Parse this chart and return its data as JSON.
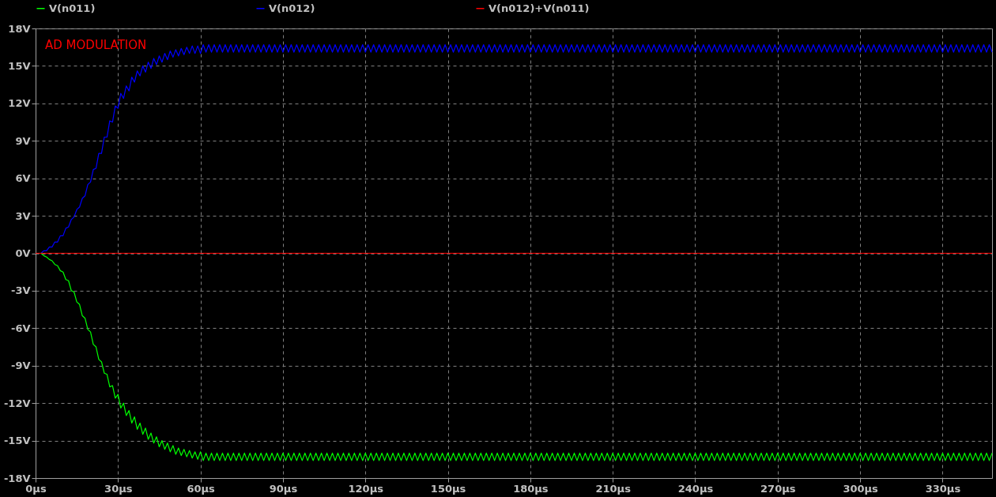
{
  "chart_data": {
    "type": "line",
    "annotations": [
      "AD MODULATION"
    ],
    "x": [
      2,
      3,
      4,
      5,
      6,
      7,
      8,
      9,
      10,
      11,
      12,
      13,
      14,
      15,
      16,
      17,
      18,
      19,
      20,
      21,
      22,
      23,
      24,
      25,
      26,
      27,
      28,
      29,
      30,
      31,
      32,
      33,
      34,
      35,
      36,
      37,
      38,
      39,
      40,
      41,
      42,
      43,
      44,
      45,
      46,
      47,
      48,
      49,
      50,
      51,
      52,
      53,
      54,
      55,
      56,
      57,
      58,
      59,
      60,
      61,
      62,
      63,
      64,
      65,
      66,
      67,
      68,
      69,
      70,
      71,
      72,
      73,
      74,
      75,
      76,
      77,
      78,
      79,
      80,
      81,
      82,
      83,
      84,
      85,
      86,
      87,
      88,
      89,
      90,
      91,
      92,
      93,
      94,
      95,
      96,
      97,
      98,
      99,
      100,
      101,
      102,
      103,
      104,
      105,
      106,
      107,
      108,
      109,
      110,
      111,
      112,
      113,
      114,
      115,
      116,
      117,
      118,
      119,
      120,
      121,
      122,
      123,
      124,
      125,
      126,
      127,
      128,
      129,
      130,
      131,
      132,
      133,
      134,
      135,
      136,
      137,
      138,
      139,
      140,
      141,
      142,
      143,
      144,
      145,
      146,
      147,
      148,
      149,
      150,
      151,
      152,
      153,
      154,
      155,
      156,
      157,
      158,
      159,
      160,
      161,
      162,
      163,
      164,
      165,
      166,
      167,
      168,
      169,
      170,
      171,
      172,
      173,
      174,
      175,
      176,
      177,
      178,
      179,
      180,
      181,
      182,
      183,
      184,
      185,
      186,
      187,
      188,
      189,
      190,
      191,
      192,
      193,
      194,
      195,
      196,
      197,
      198,
      199,
      200,
      201,
      202,
      203,
      204,
      205,
      206,
      207,
      208,
      209,
      210,
      211,
      212,
      213,
      214,
      215,
      216,
      217,
      218,
      219,
      220,
      221,
      222,
      223,
      224,
      225,
      226,
      227,
      228,
      229,
      230,
      231,
      232,
      233,
      234,
      235,
      236,
      237,
      238,
      239,
      240,
      241,
      242,
      243,
      244,
      245,
      246,
      247,
      248,
      249,
      250,
      251,
      252,
      253,
      254,
      255,
      256,
      257,
      258,
      259,
      260,
      261,
      262,
      263,
      264,
      265,
      266,
      267,
      268,
      269,
      270,
      271,
      272,
      273,
      274,
      275,
      276,
      277,
      278,
      279,
      280,
      281,
      282,
      283,
      284,
      285,
      286,
      287,
      288,
      289,
      290,
      291,
      292,
      293,
      294,
      295,
      296,
      297,
      298,
      299,
      300,
      301,
      302,
      303,
      304,
      305,
      306,
      307,
      308,
      309,
      310,
      311,
      312,
      313,
      314,
      315,
      316,
      317,
      318,
      319,
      320,
      321,
      322,
      323,
      324,
      325,
      326,
      327,
      328,
      329,
      330,
      331,
      332,
      333,
      334,
      335,
      336,
      337,
      338,
      339,
      340,
      341,
      342,
      343,
      344,
      345,
      346,
      347,
      348
    ],
    "series": [
      {
        "name": "V(n011)",
        "color": "#00ff00",
        "values": [
          0,
          -0.2,
          -0.3,
          -0.5,
          -0.6,
          -0.9,
          -1.0,
          -1.4,
          -1.5,
          -2.1,
          -2.2,
          -3.0,
          -3.1,
          -3.9,
          -4.1,
          -5.0,
          -5.2,
          -6.1,
          -6.3,
          -7.3,
          -7.5,
          -8.5,
          -8.7,
          -9.6,
          -9.7,
          -10.7,
          -10.6,
          -11.6,
          -11.3,
          -12.4,
          -12.0,
          -13.0,
          -12.6,
          -13.6,
          -13.1,
          -14.1,
          -13.6,
          -14.5,
          -14.0,
          -14.9,
          -14.4,
          -15.2,
          -14.7,
          -15.5,
          -15.0,
          -15.7,
          -15.2,
          -15.9,
          -15.4,
          -16.1,
          -15.6,
          -16.2,
          -15.7,
          -16.3,
          -15.8,
          -16.4,
          -15.9,
          -16.5,
          -15.9,
          -16.6,
          -16.0,
          -16.6,
          -16.0,
          -16.6,
          -16.0,
          -16.6,
          -16.0,
          -16.6,
          -16.0,
          -16.6,
          -16.0,
          -16.6,
          -16.0,
          -16.6,
          -16.0,
          -16.6,
          -16.0,
          -16.6,
          -16.0,
          -16.6,
          -16.0,
          -16.6,
          -16.0,
          -16.6,
          -16.0,
          -16.6,
          -16.0,
          -16.6,
          -16.0,
          -16.6,
          -16.0,
          -16.6,
          -16.0,
          -16.6,
          -16.0,
          -16.6,
          -16.0,
          -16.6,
          -16.0,
          -16.6,
          -16.0,
          -16.6,
          -16.0,
          -16.6,
          -16.0,
          -16.6,
          -16.0,
          -16.6,
          -16.0,
          -16.6,
          -16.0,
          -16.6,
          -16.0,
          -16.6,
          -16.0,
          -16.6,
          -16.0,
          -16.6,
          -16.0,
          -16.6,
          -16.0,
          -16.6,
          -16.0,
          -16.6,
          -16.0,
          -16.6,
          -16.0,
          -16.6,
          -16.0,
          -16.6,
          -16.0,
          -16.6,
          -16.0,
          -16.6,
          -16.0,
          -16.6,
          -16.0,
          -16.6,
          -16.0,
          -16.6,
          -16.0,
          -16.6,
          -16.0,
          -16.6,
          -16.0,
          -16.6,
          -16.0,
          -16.6,
          -16.0,
          -16.6,
          -16.0,
          -16.6,
          -16.0,
          -16.6,
          -16.0,
          -16.6,
          -16.0,
          -16.6,
          -16.0,
          -16.6,
          -16.0,
          -16.6,
          -16.0,
          -16.6,
          -16.0,
          -16.6,
          -16.0,
          -16.6,
          -16.0,
          -16.6,
          -16.0,
          -16.6,
          -16.0,
          -16.6,
          -16.0,
          -16.6,
          -16.0,
          -16.6,
          -16.0,
          -16.6,
          -16.0,
          -16.6,
          -16.0,
          -16.6,
          -16.0,
          -16.6,
          -16.0,
          -16.6,
          -16.0,
          -16.6,
          -16.0,
          -16.6,
          -16.0,
          -16.6,
          -16.0,
          -16.6,
          -16.0,
          -16.6,
          -16.0,
          -16.6,
          -16.0,
          -16.6,
          -16.0,
          -16.6,
          -16.0,
          -16.6,
          -16.0,
          -16.6,
          -16.0,
          -16.6,
          -16.0,
          -16.6,
          -16.0,
          -16.6,
          -16.0,
          -16.6,
          -16.0,
          -16.6,
          -16.0,
          -16.6,
          -16.0,
          -16.6,
          -16.0,
          -16.6,
          -16.0,
          -16.6,
          -16.0,
          -16.6,
          -16.0,
          -16.6,
          -16.0,
          -16.6,
          -16.0,
          -16.6,
          -16.0,
          -16.6,
          -16.0,
          -16.6,
          -16.0,
          -16.6,
          -16.0,
          -16.6,
          -16.0,
          -16.6,
          -16.0,
          -16.6,
          -16.0,
          -16.6,
          -16.0,
          -16.6,
          -16.0,
          -16.6,
          -16.0,
          -16.6,
          -16.0,
          -16.6,
          -16.0,
          -16.6,
          -16.0,
          -16.6,
          -16.0,
          -16.6,
          -16.0,
          -16.6,
          -16.0,
          -16.6,
          -16.0,
          -16.6,
          -16.0,
          -16.6,
          -16.0,
          -16.6,
          -16.0,
          -16.6,
          -16.0,
          -16.6,
          -16.0,
          -16.6,
          -16.0,
          -16.6,
          -16.0,
          -16.6,
          -16.0,
          -16.6,
          -16.0,
          -16.6,
          -16.0,
          -16.6,
          -16.0,
          -16.6,
          -16.0,
          -16.6,
          -16.0,
          -16.6,
          -16.0,
          -16.6,
          -16.0,
          -16.6,
          -16.0,
          -16.6,
          -16.0,
          -16.6,
          -16.0,
          -16.6,
          -16.0,
          -16.6,
          -16.0,
          -16.6,
          -16.0,
          -16.6,
          -16.0,
          -16.6,
          -16.0,
          -16.6,
          -16.0,
          -16.6,
          -16.0,
          -16.6,
          -16.0,
          -16.6,
          -16.0,
          -16.6,
          -16.0,
          -16.6,
          -16.0,
          -16.6,
          -16.0,
          -16.6,
          -16.0,
          -16.6,
          -16.0,
          -16.6,
          -16.0,
          -16.6,
          -16.0,
          -16.6,
          -16.0,
          -16.6,
          -16.0,
          -16.6,
          -16.0,
          -16.6,
          -16.0,
          -16.6,
          -16.0,
          -16.6,
          -16.0
        ]
      },
      {
        "name": "V(n012)",
        "color": "#0000ff",
        "values": [
          0,
          0.2,
          0.2,
          0.5,
          0.5,
          0.9,
          0.9,
          1.4,
          1.4,
          2.0,
          2.1,
          2.7,
          2.9,
          3.5,
          3.7,
          4.4,
          4.6,
          5.5,
          5.7,
          6.7,
          6.8,
          8.0,
          8.0,
          9.3,
          9.3,
          10.6,
          10.5,
          11.8,
          11.6,
          12.8,
          12.4,
          13.4,
          13.0,
          14.1,
          13.7,
          14.6,
          14.2,
          15.0,
          14.5,
          15.3,
          14.8,
          15.6,
          15.1,
          15.8,
          15.3,
          16.0,
          15.5,
          16.2,
          15.7,
          16.3,
          15.8,
          16.4,
          15.9,
          16.5,
          16.0,
          16.6,
          16.0,
          16.6,
          16.0,
          16.7,
          16.1,
          16.7,
          16.1,
          16.7,
          16.1,
          16.7,
          16.1,
          16.7,
          16.1,
          16.7,
          16.1,
          16.7,
          16.1,
          16.7,
          16.1,
          16.7,
          16.1,
          16.7,
          16.1,
          16.7,
          16.1,
          16.7,
          16.1,
          16.7,
          16.1,
          16.7,
          16.1,
          16.7,
          16.1,
          16.7,
          16.1,
          16.7,
          16.1,
          16.7,
          16.1,
          16.7,
          16.1,
          16.7,
          16.1,
          16.7,
          16.1,
          16.7,
          16.1,
          16.7,
          16.1,
          16.7,
          16.1,
          16.7,
          16.1,
          16.7,
          16.1,
          16.7,
          16.1,
          16.7,
          16.1,
          16.7,
          16.1,
          16.7,
          16.1,
          16.7,
          16.1,
          16.7,
          16.1,
          16.7,
          16.1,
          16.7,
          16.1,
          16.7,
          16.1,
          16.7,
          16.1,
          16.7,
          16.1,
          16.7,
          16.1,
          16.7,
          16.1,
          16.7,
          16.1,
          16.7,
          16.1,
          16.7,
          16.1,
          16.7,
          16.1,
          16.7,
          16.1,
          16.7,
          16.1,
          16.7,
          16.1,
          16.7,
          16.1,
          16.7,
          16.1,
          16.7,
          16.1,
          16.7,
          16.1,
          16.7,
          16.1,
          16.7,
          16.1,
          16.7,
          16.1,
          16.7,
          16.1,
          16.7,
          16.1,
          16.7,
          16.1,
          16.7,
          16.1,
          16.7,
          16.1,
          16.7,
          16.1,
          16.7,
          16.1,
          16.7,
          16.1,
          16.7,
          16.1,
          16.7,
          16.1,
          16.7,
          16.1,
          16.7,
          16.1,
          16.7,
          16.1,
          16.7,
          16.1,
          16.7,
          16.1,
          16.7,
          16.1,
          16.7,
          16.1,
          16.7,
          16.1,
          16.7,
          16.1,
          16.7,
          16.1,
          16.7,
          16.1,
          16.7,
          16.1,
          16.7,
          16.1,
          16.7,
          16.1,
          16.7,
          16.1,
          16.7,
          16.1,
          16.7,
          16.1,
          16.7,
          16.1,
          16.7,
          16.1,
          16.7,
          16.1,
          16.7,
          16.1,
          16.7,
          16.1,
          16.7,
          16.1,
          16.7,
          16.1,
          16.7,
          16.1,
          16.7,
          16.1,
          16.7,
          16.1,
          16.7,
          16.1,
          16.7,
          16.1,
          16.7,
          16.1,
          16.7,
          16.1,
          16.7,
          16.1,
          16.7,
          16.1,
          16.7,
          16.1,
          16.7,
          16.1,
          16.7,
          16.1,
          16.7,
          16.1,
          16.7,
          16.1,
          16.7,
          16.1,
          16.7,
          16.1,
          16.7,
          16.1,
          16.7,
          16.1,
          16.7,
          16.1,
          16.7,
          16.1,
          16.7,
          16.1,
          16.7,
          16.1,
          16.7,
          16.1,
          16.7,
          16.1,
          16.7,
          16.1,
          16.7,
          16.1,
          16.7,
          16.1,
          16.7,
          16.1,
          16.7,
          16.1,
          16.7,
          16.1,
          16.7,
          16.1,
          16.7,
          16.1,
          16.7,
          16.1,
          16.7,
          16.1,
          16.7,
          16.1,
          16.7,
          16.1,
          16.7,
          16.1,
          16.7,
          16.1,
          16.7,
          16.1,
          16.7,
          16.1,
          16.7,
          16.1,
          16.7,
          16.1,
          16.7,
          16.1,
          16.7,
          16.1,
          16.7,
          16.1,
          16.7,
          16.1,
          16.7,
          16.1,
          16.7,
          16.1,
          16.7,
          16.1,
          16.7,
          16.1,
          16.7,
          16.1,
          16.7,
          16.1,
          16.7,
          16.1,
          16.7,
          16.1,
          16.7,
          16.1,
          16.7,
          16.1,
          16.7,
          16.1
        ]
      },
      {
        "name": "V(n012)+V(n011)",
        "color": "#ff0000",
        "x": [
          0,
          348
        ],
        "values": [
          0,
          0
        ]
      }
    ],
    "xlim": [
      0,
      348
    ],
    "ylim": [
      -18,
      18
    ],
    "xticks": [
      {
        "value": 0,
        "label": "0µs"
      },
      {
        "value": 30,
        "label": "30µs"
      },
      {
        "value": 60,
        "label": "60µs"
      },
      {
        "value": 90,
        "label": "90µs"
      },
      {
        "value": 120,
        "label": "120µs"
      },
      {
        "value": 150,
        "label": "150µs"
      },
      {
        "value": 180,
        "label": "180µs"
      },
      {
        "value": 210,
        "label": "210µs"
      },
      {
        "value": 240,
        "label": "240µs"
      },
      {
        "value": 270,
        "label": "270µs"
      },
      {
        "value": 300,
        "label": "300µs"
      },
      {
        "value": 330,
        "label": "330µs"
      }
    ],
    "yticks": [
      {
        "value": -18,
        "label": "-18V"
      },
      {
        "value": -15,
        "label": "-15V"
      },
      {
        "value": -12,
        "label": "-12V"
      },
      {
        "value": -9,
        "label": "-9V"
      },
      {
        "value": -6,
        "label": "-6V"
      },
      {
        "value": -3,
        "label": "-3V"
      },
      {
        "value": 0,
        "label": "0V"
      },
      {
        "value": 3,
        "label": "3V"
      },
      {
        "value": 6,
        "label": "6V"
      },
      {
        "value": 9,
        "label": "9V"
      },
      {
        "value": 12,
        "label": "12V"
      },
      {
        "value": 15,
        "label": "15V"
      },
      {
        "value": 18,
        "label": "18V"
      }
    ],
    "grid": true,
    "legend": "top",
    "marker": "none",
    "line_style": "solid"
  }
}
